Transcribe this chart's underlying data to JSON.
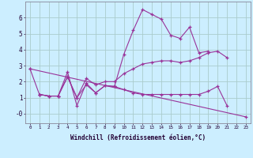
{
  "xlabel": "Windchill (Refroidissement éolien,°C)",
  "bg_color": "#cceeff",
  "grid_color": "#aacccc",
  "line_color": "#993399",
  "line1_x": [
    0,
    1,
    2,
    3,
    4,
    5,
    6,
    7,
    8,
    9,
    10,
    11,
    12,
    13,
    14,
    15,
    16,
    17,
    18,
    19
  ],
  "line1_y": [
    2.8,
    1.2,
    1.1,
    1.1,
    2.6,
    0.5,
    1.9,
    1.3,
    1.75,
    1.7,
    3.7,
    5.2,
    6.5,
    6.2,
    5.9,
    4.9,
    4.7,
    5.4,
    3.8,
    3.9
  ],
  "line2_x": [
    1,
    2,
    3,
    4,
    5,
    6,
    7,
    8,
    9,
    10,
    11,
    12,
    13,
    14,
    15,
    16,
    17,
    18,
    19,
    20,
    21
  ],
  "line2_y": [
    1.2,
    1.1,
    1.1,
    2.3,
    1.0,
    1.8,
    1.3,
    1.75,
    1.7,
    1.5,
    1.3,
    1.2,
    1.2,
    1.2,
    1.2,
    1.2,
    1.2,
    1.2,
    1.4,
    1.7,
    0.5
  ],
  "line3_x": [
    0,
    23
  ],
  "line3_y": [
    2.8,
    -0.2
  ],
  "line4_x": [
    1,
    2,
    3,
    4,
    5,
    6,
    7,
    8,
    9,
    10,
    11,
    12,
    13,
    14,
    15,
    16,
    17,
    18,
    19,
    20,
    21
  ],
  "line4_y": [
    1.2,
    1.1,
    1.1,
    2.3,
    1.0,
    2.2,
    1.8,
    2.0,
    2.0,
    2.5,
    2.8,
    3.1,
    3.2,
    3.3,
    3.3,
    3.2,
    3.3,
    3.5,
    3.8,
    3.9,
    3.5
  ],
  "ylim": [
    -0.6,
    7.0
  ],
  "xlim": [
    -0.5,
    23.5
  ],
  "yticks": [
    0,
    1,
    2,
    3,
    4,
    5,
    6
  ],
  "ytick_labels": [
    "-0",
    "1",
    "2",
    "3",
    "4",
    "5",
    "6"
  ],
  "xticks": [
    0,
    1,
    2,
    3,
    4,
    5,
    6,
    7,
    8,
    9,
    10,
    11,
    12,
    13,
    14,
    15,
    16,
    17,
    18,
    19,
    20,
    21,
    22,
    23
  ]
}
